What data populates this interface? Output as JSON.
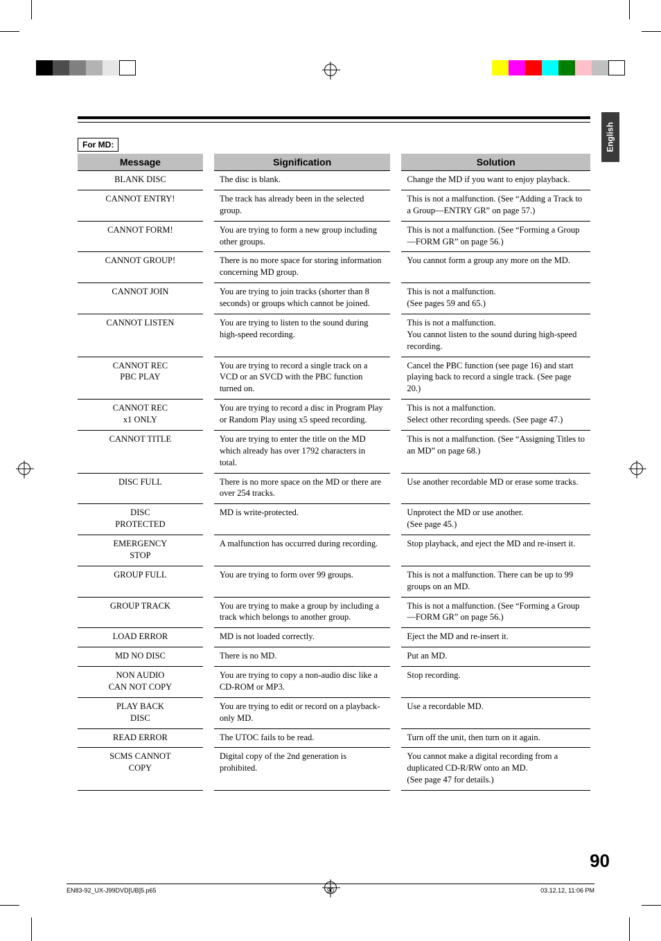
{
  "side_tab": "English",
  "section_label": "For MD:",
  "columns": [
    "Message",
    "Signification",
    "Solution"
  ],
  "rows": [
    {
      "msg": "BLANK DISC",
      "sig": "The disc is blank.",
      "sol": "Change the MD if you want to enjoy playback."
    },
    {
      "msg": "CANNOT ENTRY!",
      "sig": "The track has already been in the selected group.",
      "sol": "This is not a malfunction. (See “Adding a Track to a Group—ENTRY GR” on page 57.)"
    },
    {
      "msg": "CANNOT FORM!",
      "sig": "You are trying to form a new group including other groups.",
      "sol": "This is not a malfunction. (See “Forming a Group—FORM GR” on page 56.)"
    },
    {
      "msg": "CANNOT GROUP!",
      "sig": "There is no more space for storing information concerning MD group.",
      "sol": "You cannot form a group any more on the MD."
    },
    {
      "msg": "CANNOT JOIN",
      "sig": "You are trying to join tracks (shorter than 8 seconds) or groups which cannot be joined.",
      "sol": "This is not a malfunction.\n(See pages 59 and 65.)"
    },
    {
      "msg": "CANNOT LISTEN",
      "sig": "You are trying to listen to the sound during high-speed recording.",
      "sol": "This is not a malfunction.\nYou cannot listen to the sound during high-speed recording."
    },
    {
      "msg": "CANNOT REC\nPBC PLAY",
      "sig": "You are trying to record a single track on a VCD or an SVCD with the PBC function turned on.",
      "sol": "Cancel the PBC function (see page 16) and start playing back to record a single track. (See page 20.)"
    },
    {
      "msg": "CANNOT REC\nx1 ONLY",
      "sig": "You are trying to record a disc in Program Play or Random Play using x5 speed recording.",
      "sol": "This is not a malfunction.\nSelect other recording speeds. (See page 47.)"
    },
    {
      "msg": "CANNOT TITLE",
      "sig": "You are trying to enter the title on the MD which already has over 1792 characters in total.",
      "sol": "This is not a malfunction. (See “Assigning Titles to an MD” on page 68.)"
    },
    {
      "msg": "DISC FULL",
      "sig": "There is no more space on the MD or there are over 254 tracks.",
      "sol": "Use another recordable MD or erase some tracks."
    },
    {
      "msg": "DISC\nPROTECTED",
      "sig": "MD is write-protected.",
      "sol": "Unprotect the MD or use another.\n(See page 45.)"
    },
    {
      "msg": "EMERGENCY\nSTOP",
      "sig": "A malfunction has occurred during recording.",
      "sol": "Stop playback, and eject the MD and re-insert it."
    },
    {
      "msg": "GROUP FULL",
      "sig": "You are trying to form over 99 groups.",
      "sol": "This is not a malfunction. There can be up to 99 groups on an MD."
    },
    {
      "msg": "GROUP TRACK",
      "sig": "You are trying to make a group by including a track which belongs to another group.",
      "sol": "This is not a malfunction. (See “Forming a Group—FORM GR” on page 56.)"
    },
    {
      "msg": "LOAD ERROR",
      "sig": "MD is not loaded correctly.",
      "sol": "Eject the MD and re-insert it."
    },
    {
      "msg": "MD NO DISC",
      "sig": "There is no MD.",
      "sol": "Put an MD."
    },
    {
      "msg": "NON AUDIO\nCAN NOT COPY",
      "sig": "You are trying to copy a non-audio disc like a CD-ROM or MP3.",
      "sol": "Stop recording."
    },
    {
      "msg": "PLAY BACK\nDISC",
      "sig": "You are trying to edit or record on a playback-only MD.",
      "sol": "Use a recordable MD."
    },
    {
      "msg": "READ ERROR",
      "sig": "The UTOC fails to be read.",
      "sol": "Turn off the unit, then turn on it again."
    },
    {
      "msg": "SCMS CANNOT\nCOPY",
      "sig": "Digital copy of the 2nd generation is prohibited.",
      "sol": "You cannot make a digital recording from a duplicated CD-R/RW onto an MD.\n(See page 47 for details.)"
    }
  ],
  "page_number": "90",
  "footer": {
    "left": "EN83-92_UX-J99DVD[UB]5.p65",
    "mid": "90",
    "right": "03.12.12, 11:06 PM"
  },
  "color_bar_left": [
    "#000000",
    "#4d4d4d",
    "#808080",
    "#b3b3b3",
    "#e6e6e6",
    "#ffffff"
  ],
  "color_bar_right": [
    "#ffff00",
    "#ff00ff",
    "#ff0000",
    "#00ffff",
    "#008000",
    "#ffc0cb",
    "#c0c0c0",
    "#ffffff"
  ],
  "style": {
    "header_bg": "#bfbfbf",
    "text_color": "#000000",
    "page_bg": "#ffffff",
    "side_tab_bg": "#3a3a3a",
    "body_font": "Times New Roman",
    "heading_font": "Arial",
    "body_fontsize_pt": 9.5,
    "heading_fontsize_pt": 11
  }
}
